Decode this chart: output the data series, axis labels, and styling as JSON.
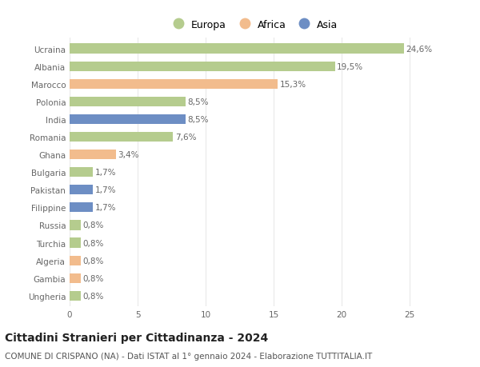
{
  "categories": [
    "Ucraina",
    "Albania",
    "Marocco",
    "Polonia",
    "India",
    "Romania",
    "Ghana",
    "Bulgaria",
    "Pakistan",
    "Filippine",
    "Russia",
    "Turchia",
    "Algeria",
    "Gambia",
    "Ungheria"
  ],
  "values": [
    24.6,
    19.5,
    15.3,
    8.5,
    8.5,
    7.6,
    3.4,
    1.7,
    1.7,
    1.7,
    0.8,
    0.8,
    0.8,
    0.8,
    0.8
  ],
  "labels": [
    "24,6%",
    "19,5%",
    "15,3%",
    "8,5%",
    "8,5%",
    "7,6%",
    "3,4%",
    "1,7%",
    "1,7%",
    "1,7%",
    "0,8%",
    "0,8%",
    "0,8%",
    "0,8%",
    "0,8%"
  ],
  "continents": [
    "Europa",
    "Europa",
    "Africa",
    "Europa",
    "Asia",
    "Europa",
    "Africa",
    "Europa",
    "Asia",
    "Asia",
    "Europa",
    "Europa",
    "Africa",
    "Africa",
    "Europa"
  ],
  "colors": {
    "Europa": "#b5cc8e",
    "Africa": "#f2bc8d",
    "Asia": "#6d8ec4"
  },
  "legend_order": [
    "Europa",
    "Africa",
    "Asia"
  ],
  "title": "Cittadini Stranieri per Cittadinanza - 2024",
  "subtitle": "COMUNE DI CRISPANO (NA) - Dati ISTAT al 1° gennaio 2024 - Elaborazione TUTTITALIA.IT",
  "xlim": [
    0,
    27
  ],
  "xticks": [
    0,
    5,
    10,
    15,
    20,
    25
  ],
  "background_color": "#ffffff",
  "grid_color": "#e8e8e8",
  "bar_height": 0.55,
  "title_fontsize": 10,
  "subtitle_fontsize": 7.5,
  "label_fontsize": 7.5,
  "tick_fontsize": 7.5,
  "legend_fontsize": 9
}
